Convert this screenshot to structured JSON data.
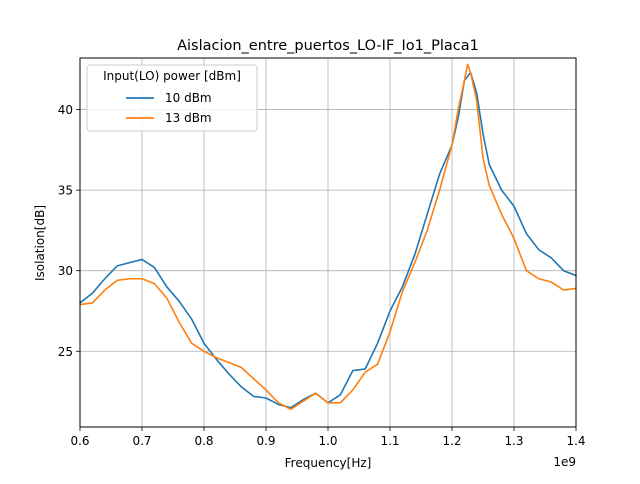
{
  "chart_data": {
    "type": "line",
    "title": "Aislacion_entre_puertos_LO-IF_Io1_Placa1",
    "xlabel": "Frequency[Hz]",
    "ylabel": "Isolation[dB]",
    "x_offset_label": "1e9",
    "xlim": [
      0.6,
      1.4
    ],
    "ylim": [
      20.3,
      43.2
    ],
    "x_ticks": [
      0.6,
      0.7,
      0.8,
      0.9,
      1.0,
      1.1,
      1.2,
      1.3,
      1.4
    ],
    "x_tick_labels": [
      "0.6",
      "0.7",
      "0.8",
      "0.9",
      "1.0",
      "1.1",
      "1.2",
      "1.3",
      "1.4"
    ],
    "y_ticks": [
      25,
      30,
      35,
      40
    ],
    "y_tick_labels": [
      "25",
      "30",
      "35",
      "40"
    ],
    "grid": true,
    "legend": {
      "title": "Input(LO) power [dBm]",
      "placement": "top-left"
    },
    "series": [
      {
        "name": "10 dBm",
        "color": "#1f77b4",
        "x": [
          0.6,
          0.62,
          0.64,
          0.66,
          0.68,
          0.7,
          0.72,
          0.74,
          0.76,
          0.78,
          0.8,
          0.82,
          0.84,
          0.86,
          0.88,
          0.9,
          0.92,
          0.94,
          0.96,
          0.98,
          1.0,
          1.02,
          1.04,
          1.06,
          1.08,
          1.1,
          1.12,
          1.14,
          1.16,
          1.18,
          1.2,
          1.21,
          1.22,
          1.23,
          1.24,
          1.25,
          1.26,
          1.28,
          1.3,
          1.32,
          1.34,
          1.36,
          1.38,
          1.4
        ],
        "y": [
          28.0,
          28.6,
          29.5,
          30.3,
          30.5,
          30.7,
          30.2,
          29.0,
          28.1,
          27.0,
          25.5,
          24.5,
          23.6,
          22.8,
          22.2,
          22.1,
          21.7,
          21.5,
          22.0,
          22.4,
          21.8,
          22.3,
          23.8,
          23.9,
          25.5,
          27.5,
          29.0,
          31.0,
          33.5,
          36.0,
          37.8,
          39.5,
          41.8,
          42.3,
          41.0,
          38.5,
          36.6,
          35.0,
          34.0,
          32.3,
          31.3,
          30.8,
          30.0,
          29.7
        ]
      },
      {
        "name": "13 dBm",
        "color": "#ff7f0e",
        "x": [
          0.6,
          0.62,
          0.64,
          0.66,
          0.68,
          0.7,
          0.72,
          0.74,
          0.76,
          0.78,
          0.8,
          0.82,
          0.84,
          0.86,
          0.88,
          0.9,
          0.92,
          0.94,
          0.96,
          0.98,
          1.0,
          1.02,
          1.04,
          1.06,
          1.08,
          1.1,
          1.12,
          1.14,
          1.16,
          1.18,
          1.2,
          1.21,
          1.22,
          1.225,
          1.23,
          1.24,
          1.25,
          1.26,
          1.28,
          1.3,
          1.32,
          1.34,
          1.36,
          1.38,
          1.4
        ],
        "y": [
          27.9,
          28.0,
          28.8,
          29.4,
          29.5,
          29.5,
          29.2,
          28.3,
          26.8,
          25.5,
          25.0,
          24.6,
          24.3,
          24.0,
          23.3,
          22.6,
          21.8,
          21.4,
          21.9,
          22.4,
          21.8,
          21.8,
          22.6,
          23.7,
          24.2,
          26.2,
          28.7,
          30.5,
          32.5,
          35.0,
          37.8,
          40.0,
          41.8,
          42.8,
          42.3,
          40.5,
          37.0,
          35.3,
          33.5,
          32.0,
          30.0,
          29.5,
          29.3,
          28.8,
          28.9
        ]
      }
    ]
  }
}
